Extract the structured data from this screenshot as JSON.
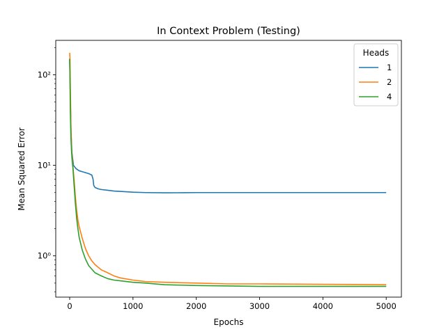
{
  "chart_data": {
    "type": "line",
    "title": "In Context Problem (Testing)",
    "xlabel": "Epochs",
    "ylabel": "Mean Squared Error",
    "yscale": "log",
    "xlim": [
      -220,
      5240
    ],
    "ylim": [
      0.35,
      240
    ],
    "xticks": [
      0,
      1000,
      2000,
      3000,
      4000,
      5000
    ],
    "yticks": [
      {
        "value": 1,
        "label": "10⁰"
      },
      {
        "value": 10,
        "label": "10¹"
      },
      {
        "value": 100,
        "label": "10²"
      }
    ],
    "grid": false,
    "legend": {
      "title": "Heads",
      "placement": "top-right"
    },
    "series": [
      {
        "name": "1",
        "color": "#1f77b4",
        "x": [
          0,
          10,
          20,
          35,
          60,
          100,
          150,
          200,
          250,
          300,
          350,
          370,
          380,
          400,
          450,
          500,
          600,
          700,
          800,
          1000,
          1200,
          1500,
          1800,
          2000,
          2500,
          3000,
          4000,
          5000
        ],
        "y": [
          150,
          60,
          25,
          14,
          10,
          9.2,
          8.7,
          8.5,
          8.3,
          8.1,
          7.8,
          7.0,
          6.0,
          5.7,
          5.5,
          5.4,
          5.3,
          5.2,
          5.15,
          5.05,
          5.0,
          4.97,
          4.98,
          5.0,
          5.0,
          5.0,
          5.0,
          5.0
        ]
      },
      {
        "name": "2",
        "color": "#ff7f0e",
        "x": [
          0,
          5,
          10,
          20,
          30,
          50,
          70,
          90,
          110,
          130,
          150,
          200,
          250,
          300,
          350,
          400,
          500,
          600,
          700,
          800,
          1000,
          1200,
          1500,
          2000,
          2500,
          3000,
          4000,
          5000
        ],
        "y": [
          175,
          150,
          80,
          28,
          15,
          10,
          7,
          4.5,
          3.2,
          2.5,
          2.1,
          1.55,
          1.2,
          1.0,
          0.88,
          0.8,
          0.7,
          0.65,
          0.6,
          0.57,
          0.54,
          0.52,
          0.51,
          0.5,
          0.49,
          0.49,
          0.485,
          0.48
        ]
      },
      {
        "name": "4",
        "color": "#2ca02c",
        "x": [
          0,
          5,
          10,
          20,
          30,
          40,
          50,
          70,
          90,
          110,
          130,
          150,
          200,
          250,
          300,
          400,
          500,
          600,
          700,
          800,
          1000,
          1200,
          1500,
          2000,
          2500,
          3000,
          4000,
          5000
        ],
        "y": [
          150,
          90,
          40,
          20,
          14,
          11,
          9.5,
          6,
          3.8,
          2.6,
          2.0,
          1.6,
          1.15,
          0.92,
          0.78,
          0.65,
          0.6,
          0.56,
          0.54,
          0.53,
          0.51,
          0.5,
          0.48,
          0.47,
          0.465,
          0.46,
          0.46,
          0.46
        ]
      }
    ]
  }
}
